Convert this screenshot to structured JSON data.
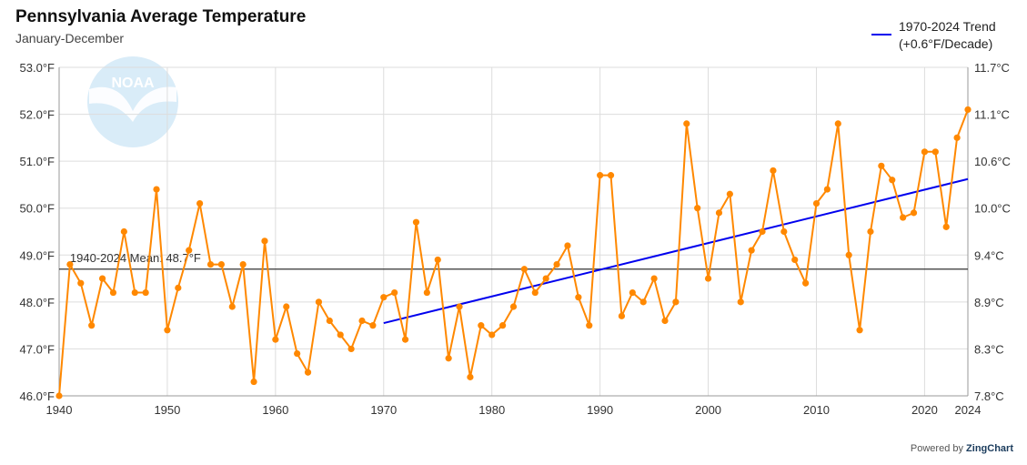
{
  "header": {
    "title": "Pennsylvania Average Temperature",
    "subtitle": "January-December"
  },
  "legend": {
    "line1": "1970-2024 Trend",
    "line2": "(+0.6°F/Decade)"
  },
  "credit": {
    "prefix": "Powered by",
    "brand": "ZingChart"
  },
  "logo": {
    "text": "NOAA"
  },
  "colors": {
    "series": "#ff8800",
    "trend": "#0000ee",
    "mean": "#333333",
    "grid": "#dddddd",
    "logo": "#d6eaf7"
  },
  "chart_data": {
    "type": "line",
    "title": "Pennsylvania Average Temperature",
    "subtitle": "January-December",
    "x": [
      1940,
      1941,
      1942,
      1943,
      1944,
      1945,
      1946,
      1947,
      1948,
      1949,
      1950,
      1951,
      1952,
      1953,
      1954,
      1955,
      1956,
      1957,
      1958,
      1959,
      1960,
      1961,
      1962,
      1963,
      1964,
      1965,
      1966,
      1967,
      1968,
      1969,
      1970,
      1971,
      1972,
      1973,
      1974,
      1975,
      1976,
      1977,
      1978,
      1979,
      1980,
      1981,
      1982,
      1983,
      1984,
      1985,
      1986,
      1987,
      1988,
      1989,
      1990,
      1991,
      1992,
      1993,
      1994,
      1995,
      1996,
      1997,
      1998,
      1999,
      2000,
      2001,
      2002,
      2003,
      2004,
      2005,
      2006,
      2007,
      2008,
      2009,
      2010,
      2011,
      2012,
      2013,
      2014,
      2015,
      2016,
      2017,
      2018,
      2019,
      2020,
      2021,
      2022,
      2023,
      2024
    ],
    "series": [
      {
        "values": [
          46.0,
          48.8,
          48.4,
          47.5,
          48.5,
          48.2,
          49.5,
          48.2,
          48.2,
          50.4,
          47.4,
          48.3,
          49.1,
          50.1,
          48.8,
          48.8,
          47.9,
          48.8,
          46.3,
          49.3,
          47.2,
          47.9,
          46.9,
          46.5,
          48.0,
          47.6,
          47.3,
          47.0,
          47.6,
          47.5,
          48.1,
          48.2,
          47.2,
          49.7,
          48.2,
          48.9,
          46.8,
          47.9,
          46.4,
          47.5,
          47.3,
          47.5,
          47.9,
          48.7,
          48.2,
          48.5,
          48.8,
          49.2,
          48.1,
          47.5,
          50.7,
          50.7,
          47.7,
          48.2,
          48.0,
          48.5,
          47.6,
          48.0,
          51.8,
          50.0,
          48.5,
          49.9,
          50.3,
          48.0,
          49.1,
          49.5,
          50.8,
          49.5,
          48.9,
          48.4,
          50.1,
          50.4,
          51.8,
          49.0,
          47.4,
          49.5,
          50.9,
          50.6,
          49.8,
          49.9,
          51.2,
          51.2,
          49.6,
          51.5,
          52.1
        ]
      }
    ],
    "trend": {
      "label": "1970-2024 Trend",
      "rate": "(+0.6°F/Decade)",
      "x": [
        1970,
        2024
      ],
      "y": [
        47.55,
        50.62
      ]
    },
    "mean": {
      "label": "1940-2024 Mean: 48.7°F",
      "value": 48.7
    },
    "xlim": [
      1940,
      2024
    ],
    "ylim": [
      46.0,
      53.0
    ],
    "xticks": [
      1940,
      1950,
      1960,
      1970,
      1980,
      1990,
      2000,
      2010,
      2020,
      2024
    ],
    "xtick_labels": [
      "1940",
      "1950",
      "1960",
      "1970",
      "1980",
      "1990",
      "2000",
      "2010",
      "2020",
      "2024"
    ],
    "yticks": [
      46,
      47,
      48,
      49,
      50,
      51,
      52,
      53
    ],
    "ytick_labels": [
      "46.0°F",
      "47.0°F",
      "48.0°F",
      "49.0°F",
      "50.0°F",
      "51.0°F",
      "52.0°F",
      "53.0°F"
    ],
    "y2tick_labels": [
      "7.8°C",
      "8.3°C",
      "8.9°C",
      "9.4°C",
      "10.0°C",
      "10.6°C",
      "11.1°C",
      "11.7°C"
    ],
    "grid": true
  }
}
